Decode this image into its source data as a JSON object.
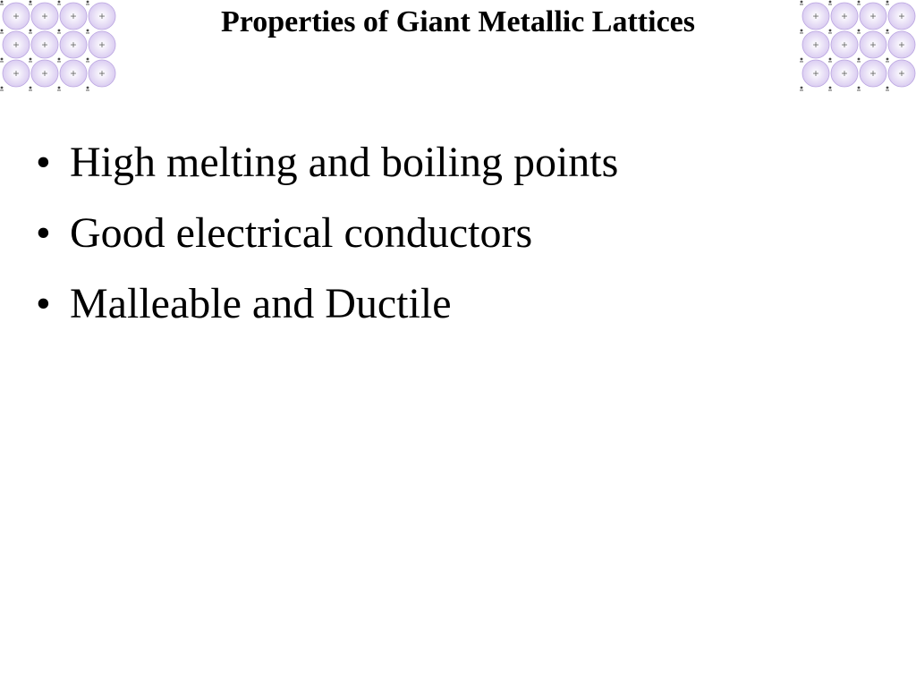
{
  "slide": {
    "title": "Properties of Giant Metallic Lattices",
    "title_fontsize": 34,
    "title_color": "#000000",
    "bullets": [
      "High melting and boiling points",
      "Good electrical conductors",
      "Malleable and Ductile"
    ],
    "bullet_fontsize": 48,
    "bullet_color": "#000000",
    "font_family": "Comic Sans MS",
    "background_color": "#ffffff"
  },
  "lattice_decor": {
    "type": "ion-lattice",
    "rows": 3,
    "cols": 4,
    "ion_radius": 15,
    "cell": 32,
    "ion_fill_inner": "#ffffff",
    "ion_fill_outer": "#d7c8f0",
    "ion_stroke": "#b9a4e0",
    "plus_color": "#6b6b6b",
    "electron_color": "#4a4a4a",
    "electron_radius": 1.4,
    "canvas": {
      "w": 130,
      "h": 105
    }
  }
}
